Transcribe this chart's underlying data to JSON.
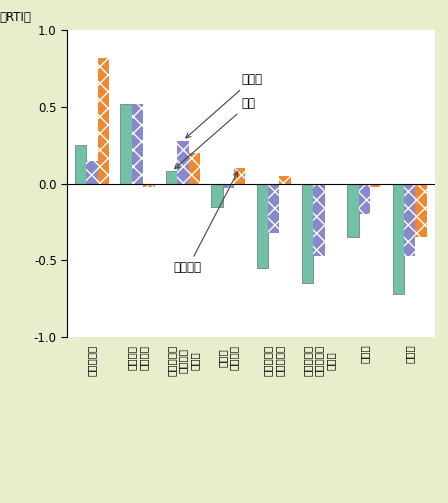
{
  "ylabel": "（RTI）",
  "categories_display": [
    "事務補助員",
    "単純作業\nの従事者",
    "設備・機械\nの運転・\n組立工",
    "技師・\n准専門職",
    "サービス・\n販売従事者",
    "技能工及び\n関連職業の\n従事者",
    "専門職",
    "管理職"
  ],
  "japan": [
    0.25,
    0.52,
    0.08,
    -0.15,
    -0.55,
    -0.65,
    -0.35,
    -0.72
  ],
  "germany": [
    0.15,
    0.52,
    0.28,
    -0.03,
    -0.32,
    -0.47,
    -0.2,
    -0.47
  ],
  "usa": [
    0.82,
    -0.02,
    0.2,
    0.1,
    0.05,
    0.0,
    -0.02,
    -0.35
  ],
  "japan_color": "#72c0a8",
  "germany_color": "#8888cc",
  "germany_hatch_color": "#8888cc",
  "usa_color": "#ee8833",
  "usa_hatch_color": "#ee8833",
  "background_color": "#e8edcc",
  "plot_bg_color": "#ffffff",
  "ylim": [
    -1.0,
    1.0
  ],
  "yticks": [
    -1.0,
    -0.5,
    0.0,
    0.5,
    1.0
  ],
  "bar_width": 0.25,
  "annotation_germany": "ドイツ",
  "annotation_japan": "日本",
  "annotation_usa": "アメリカ"
}
